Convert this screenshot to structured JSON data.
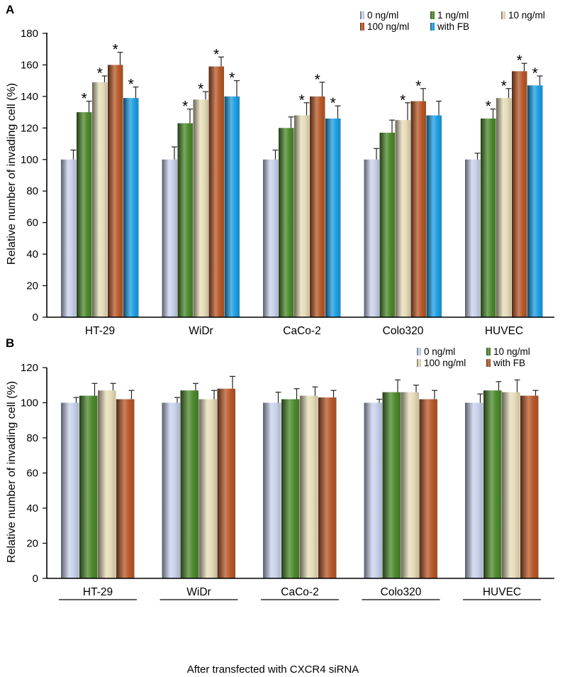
{
  "chart_data": [
    {
      "type": "bar",
      "panel_label": "A",
      "ylabel": "Relative number of invading cell (%)",
      "xlabel": "",
      "ylim": [
        0,
        180
      ],
      "yticks": [
        0,
        20,
        40,
        60,
        80,
        100,
        120,
        140,
        160,
        180
      ],
      "categories": [
        "HT-29",
        "WiDr",
        "CaCo-2",
        "Colo320",
        "HUVEC"
      ],
      "legend_position": "top-right",
      "series": [
        {
          "name": "0 ng/ml",
          "color": "#c9d2ec",
          "values": [
            100,
            100,
            100,
            100,
            100
          ],
          "errors": [
            6,
            8,
            6,
            7,
            4
          ],
          "significant": [
            false,
            false,
            false,
            false,
            false
          ]
        },
        {
          "name": "1 ng/ml",
          "color": "#4e8a2e",
          "values": [
            130,
            123,
            120,
            117,
            126
          ],
          "errors": [
            7,
            9,
            7,
            8,
            6
          ],
          "significant": [
            true,
            true,
            false,
            false,
            true
          ]
        },
        {
          "name": "10 ng/ml",
          "color": "#e6dcb8",
          "values": [
            149,
            138,
            128,
            125,
            139
          ],
          "errors": [
            4,
            5,
            8,
            11,
            6
          ],
          "significant": [
            true,
            true,
            true,
            true,
            true
          ]
        },
        {
          "name": "100 ng/ml",
          "color": "#b85a2a",
          "values": [
            160,
            159,
            140,
            137,
            156
          ],
          "errors": [
            8,
            6,
            9,
            8,
            5
          ],
          "significant": [
            true,
            true,
            true,
            true,
            true
          ]
        },
        {
          "name": "with FB",
          "color": "#1ea0e4",
          "values": [
            139,
            140,
            126,
            128,
            147
          ],
          "errors": [
            7,
            10,
            8,
            9,
            6
          ],
          "significant": [
            true,
            true,
            true,
            false,
            true
          ]
        }
      ],
      "legend_rows": [
        [
          0,
          1,
          2
        ],
        [
          3,
          4
        ]
      ],
      "significance_marker": "*"
    },
    {
      "type": "bar",
      "panel_label": "B",
      "ylabel": "Relative number of invading cell (%)",
      "xlabel": "After transfected with  CXCR4 siRNA",
      "ylim": [
        0,
        120
      ],
      "yticks": [
        0,
        20,
        40,
        60,
        80,
        100,
        120
      ],
      "categories": [
        "HT-29",
        "WiDr",
        "CaCo-2",
        "Colo320",
        "HUVEC"
      ],
      "legend_position": "top-right",
      "series": [
        {
          "name": "0 ng/ml",
          "color": "#c9d2ec",
          "values": [
            100,
            100,
            100,
            100,
            100
          ],
          "errors": [
            3,
            3,
            6,
            2,
            5
          ],
          "significant": [
            false,
            false,
            false,
            false,
            false
          ]
        },
        {
          "name": "10 ng/ml",
          "color": "#4e8a2e",
          "values": [
            104,
            107,
            102,
            106,
            107
          ],
          "errors": [
            7,
            4,
            6,
            7,
            5
          ],
          "significant": [
            false,
            false,
            false,
            false,
            false
          ]
        },
        {
          "name": "100 ng/ml",
          "color": "#e6dcb8",
          "values": [
            107,
            102,
            104,
            106,
            106
          ],
          "errors": [
            4,
            5,
            5,
            4,
            7
          ],
          "significant": [
            false,
            false,
            false,
            false,
            false
          ]
        },
        {
          "name": "with FB",
          "color": "#b85a2a",
          "values": [
            102,
            108,
            103,
            102,
            104
          ],
          "errors": [
            5,
            7,
            4,
            5,
            3
          ],
          "significant": [
            false,
            false,
            false,
            false,
            false
          ]
        }
      ],
      "legend_rows": [
        [
          0,
          1
        ],
        [
          2,
          3
        ]
      ],
      "significance_marker": "*"
    }
  ]
}
